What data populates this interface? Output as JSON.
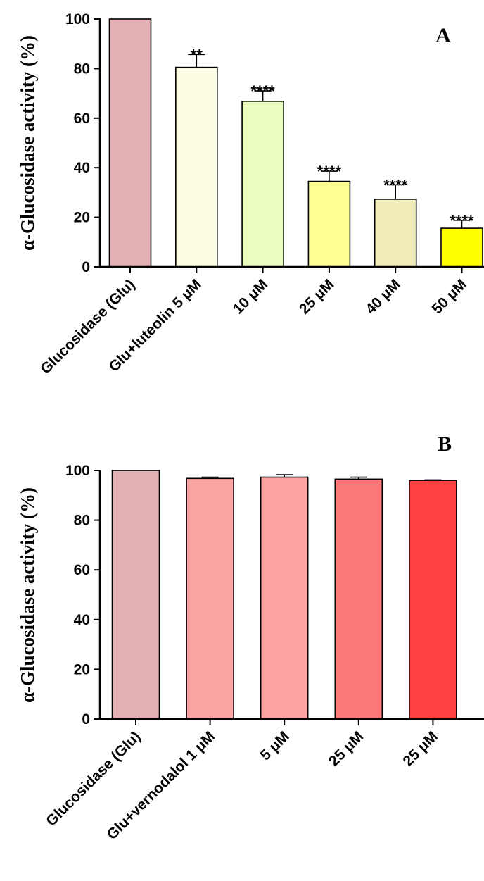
{
  "chart_data": [
    {
      "type": "bar",
      "panel": "A",
      "title": "",
      "xlabel": "",
      "ylabel": "α-Glucosidase activity (%)",
      "ylim": [
        0,
        100
      ],
      "yticks": [
        "0",
        "20",
        "40",
        "60",
        "80",
        "100"
      ],
      "categories": [
        "Glucosidase (Glu)",
        "Glu+luteolin 5 μM",
        "10 μM",
        "25 μM",
        "40 μM",
        "50 μM"
      ],
      "values": [
        100,
        80.5,
        66.8,
        34.5,
        27.3,
        15.6
      ],
      "errors": [
        0,
        5.2,
        4.2,
        4.1,
        5.8,
        3.2
      ],
      "significance": [
        "",
        "**",
        "****",
        "****",
        "****",
        "****"
      ],
      "colors": [
        "#e3b1b5",
        "#fdfde4",
        "#ecfdc0",
        "#fefe94",
        "#f1eebb",
        "#ffff00"
      ]
    },
    {
      "type": "bar",
      "panel": "B",
      "title": "",
      "xlabel": "",
      "ylabel": "α-Glucosidase activity (%)",
      "ylim": [
        0,
        100
      ],
      "yticks": [
        "0",
        "20",
        "40",
        "60",
        "80",
        "100"
      ],
      "categories": [
        "Glucosidase (Glu)",
        "Glu+vernodalol 1 μM",
        "5 μM",
        "25 μM",
        "25 μM"
      ],
      "values": [
        100,
        96.8,
        97.3,
        96.5,
        96.0
      ],
      "errors": [
        0,
        0.5,
        1.0,
        0.8,
        0.2
      ],
      "significance": [
        "",
        "",
        "",
        "",
        ""
      ],
      "colors": [
        "#e3b1b5",
        "#fba4a4",
        "#fba3a3",
        "#fd7979",
        "#ff4040"
      ]
    }
  ]
}
